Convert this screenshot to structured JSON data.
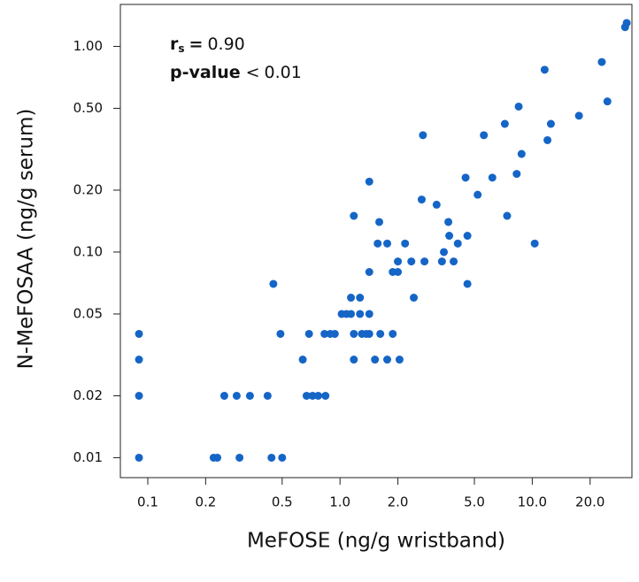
{
  "chart_data": {
    "type": "scatter",
    "x_label": "MeFOSE (ng/g wristband)",
    "y_label": "N-MeFOSAA (ng/g serum)",
    "annotations": [
      {
        "name": "r",
        "subscript": "s",
        "symbol": "=",
        "text": "0.90"
      },
      {
        "name": "p-value",
        "symbol": "<",
        "text": "0.01"
      }
    ],
    "x_log": true,
    "y_log": true,
    "color": "#1565c6",
    "xlim": [
      0.072,
      33
    ],
    "ylim": [
      0.008,
      1.6
    ],
    "xticks": [
      0.1,
      0.2,
      0.5,
      {
        "value": 1,
        "label": "1.0"
      },
      {
        "value": 2,
        "label": "2.0"
      },
      {
        "value": 5,
        "label": "5.0"
      },
      {
        "value": 10,
        "label": "10.0"
      },
      {
        "value": 20,
        "label": "20.0"
      }
    ],
    "yticks": [
      0.01,
      0.02,
      0.05,
      {
        "value": 0.1,
        "label": "0.10"
      },
      {
        "value": 0.2,
        "label": "0.20"
      },
      {
        "value": 0.5,
        "label": "0.50"
      },
      {
        "value": 1,
        "label": "1.00"
      }
    ],
    "x": [
      0.09,
      0.09,
      0.09,
      0.09,
      0.22,
      0.23,
      0.3,
      0.44,
      0.5,
      0.25,
      0.29,
      0.34,
      0.42,
      0.45,
      0.49,
      0.64,
      0.67,
      0.72,
      0.77,
      0.84,
      0.69,
      0.83,
      0.89,
      0.94,
      1.02,
      1.08,
      1.14,
      1.14,
      1.27,
      1.18,
      1.18,
      1.3,
      1.37,
      1.42,
      1.27,
      1.42,
      1.18,
      1.42,
      1.57,
      1.76,
      1.6,
      1.42,
      1.52,
      1.76,
      2.04,
      1.62,
      1.88,
      1.88,
      2.0,
      2.0,
      2.18,
      2.35,
      2.42,
      2.66,
      2.75,
      2.7,
      3.18,
      3.39,
      3.47,
      3.66,
      3.7,
      3.9,
      4.1,
      4.6,
      4.5,
      4.6,
      5.2,
      5.6,
      6.2,
      7.2,
      7.4,
      8.3,
      8.5,
      8.8,
      10.3,
      11.6,
      12,
      12.5,
      17.5,
      23,
      24.6,
      30.4,
      31
    ],
    "values": [
      0.04,
      0.03,
      0.02,
      0.01,
      0.01,
      0.01,
      0.01,
      0.01,
      0.01,
      0.02,
      0.02,
      0.02,
      0.02,
      0.07,
      0.04,
      0.03,
      0.02,
      0.02,
      0.02,
      0.02,
      0.04,
      0.04,
      0.04,
      0.04,
      0.05,
      0.05,
      0.05,
      0.06,
      0.06,
      0.03,
      0.04,
      0.04,
      0.04,
      0.04,
      0.05,
      0.05,
      0.15,
      0.22,
      0.11,
      0.11,
      0.14,
      0.08,
      0.03,
      0.03,
      0.03,
      0.04,
      0.04,
      0.08,
      0.08,
      0.09,
      0.11,
      0.09,
      0.06,
      0.18,
      0.09,
      0.37,
      0.17,
      0.09,
      0.1,
      0.14,
      0.12,
      0.09,
      0.11,
      0.12,
      0.23,
      0.07,
      0.19,
      0.37,
      0.23,
      0.42,
      0.15,
      0.24,
      0.51,
      0.3,
      0.11,
      0.77,
      0.35,
      0.42,
      0.46,
      0.84,
      0.54,
      1.24,
      1.3
    ]
  }
}
